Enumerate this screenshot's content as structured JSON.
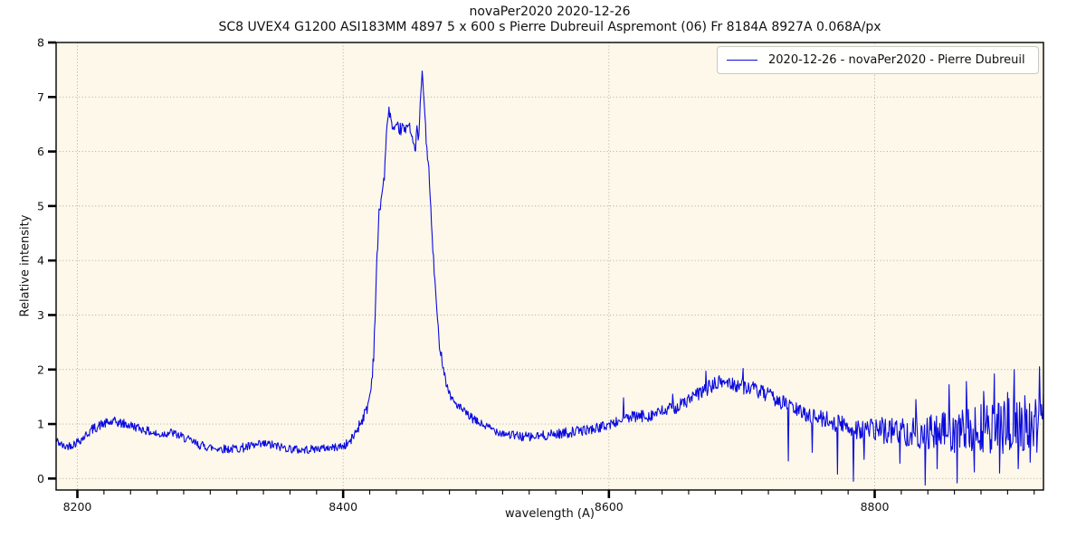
{
  "colors": {
    "figure_bg": "#ffffff",
    "axes_bg": "#fdf8e9",
    "grid": "#a8a496",
    "line": "#0a0ae0",
    "spine": "#000000",
    "text": "#111111",
    "legend_bg": "rgba(255,255,255,0.9)",
    "legend_border": "#c8c8c8"
  },
  "chart_data": {
    "type": "line",
    "title": "novaPer2020 2020-12-26",
    "subtitle": "SC8 UVEX4 G1200 ASI183MM 4897 5 x 600 s Pierre Dubreuil Aspremont (06) Fr 8184A 8927A 0.068A/px",
    "xlabel": "wavelength (A)",
    "ylabel": "Relative intensity",
    "xlim": [
      8184,
      8927
    ],
    "ylim": [
      -0.21,
      8.0
    ],
    "x_major_ticks": [
      8200,
      8400,
      8600,
      8800
    ],
    "x_minor_tick_step": 20,
    "y_major_ticks": [
      0,
      1,
      2,
      3,
      4,
      5,
      6,
      7,
      8
    ],
    "grid": "dotted, horizontal at each y major, vertical at each x major",
    "legend": {
      "position": "upper right",
      "entries": [
        {
          "label": "2020-12-26 - novaPer2020 - Pierre Dubreuil",
          "color": "#0a0ae0"
        }
      ]
    },
    "series": [
      {
        "name": "2020-12-26 - novaPer2020 - Pierre Dubreuil",
        "color": "#0a0ae0",
        "envelope_format": [
          "wavelength_A",
          "mean_intensity",
          "noise_half_amplitude"
        ],
        "envelope_points": [
          [
            8184,
            0.7,
            0.08
          ],
          [
            8190,
            0.58,
            0.07
          ],
          [
            8197,
            0.63,
            0.08
          ],
          [
            8204,
            0.74,
            0.08
          ],
          [
            8211,
            0.9,
            0.09
          ],
          [
            8219,
            1.0,
            0.09
          ],
          [
            8228,
            1.04,
            0.09
          ],
          [
            8237,
            0.99,
            0.09
          ],
          [
            8245,
            0.94,
            0.08
          ],
          [
            8253,
            0.87,
            0.08
          ],
          [
            8261,
            0.8,
            0.08
          ],
          [
            8270,
            0.85,
            0.08
          ],
          [
            8281,
            0.74,
            0.08
          ],
          [
            8291,
            0.62,
            0.08
          ],
          [
            8302,
            0.56,
            0.08
          ],
          [
            8315,
            0.54,
            0.08
          ],
          [
            8329,
            0.58,
            0.09
          ],
          [
            8342,
            0.63,
            0.09
          ],
          [
            8355,
            0.57,
            0.08
          ],
          [
            8368,
            0.52,
            0.08
          ],
          [
            8381,
            0.55,
            0.07
          ],
          [
            8393,
            0.57,
            0.07
          ],
          [
            8401,
            0.6,
            0.08
          ],
          [
            8406,
            0.7,
            0.09
          ],
          [
            8410,
            0.88,
            0.1
          ],
          [
            8414,
            1.08,
            0.12
          ],
          [
            8418,
            1.28,
            0.1
          ],
          [
            8421,
            1.65,
            0.1
          ],
          [
            8423,
            2.3,
            0.15
          ],
          [
            8425,
            3.7,
            0.18
          ],
          [
            8427,
            4.85,
            0.12
          ],
          [
            8429,
            5.2,
            0.08
          ],
          [
            8431,
            5.55,
            0.1
          ],
          [
            8432.5,
            6.25,
            0.08
          ],
          [
            8434,
            6.75,
            0.1
          ],
          [
            8435.5,
            6.7,
            0.1
          ],
          [
            8437,
            6.4,
            0.1
          ],
          [
            8439,
            6.35,
            0.12
          ],
          [
            8441,
            6.45,
            0.1
          ],
          [
            8443,
            6.4,
            0.12
          ],
          [
            8445,
            6.45,
            0.1
          ],
          [
            8447,
            6.35,
            0.1
          ],
          [
            8449,
            6.55,
            0.1
          ],
          [
            8451,
            6.4,
            0.1
          ],
          [
            8453,
            6.12,
            0.08
          ],
          [
            8454.5,
            5.98,
            0.05
          ],
          [
            8455.5,
            6.55,
            0.08
          ],
          [
            8456.5,
            6.15,
            0.08
          ],
          [
            8457.5,
            6.55,
            0.08
          ],
          [
            8458.5,
            7.1,
            0.08
          ],
          [
            8459.5,
            7.45,
            0.04
          ],
          [
            8461,
            6.9,
            0.08
          ],
          [
            8462.5,
            6.2,
            0.08
          ],
          [
            8464.5,
            5.65,
            0.1
          ],
          [
            8466,
            4.9,
            0.1
          ],
          [
            8468,
            4.0,
            0.1
          ],
          [
            8470,
            3.25,
            0.12
          ],
          [
            8472,
            2.55,
            0.1
          ],
          [
            8475,
            2.1,
            0.08
          ],
          [
            8478,
            1.7,
            0.08
          ],
          [
            8482,
            1.45,
            0.08
          ],
          [
            8487,
            1.32,
            0.08
          ],
          [
            8493,
            1.18,
            0.08
          ],
          [
            8500,
            1.05,
            0.08
          ],
          [
            8508,
            0.95,
            0.08
          ],
          [
            8518,
            0.85,
            0.08
          ],
          [
            8530,
            0.78,
            0.09
          ],
          [
            8542,
            0.76,
            0.09
          ],
          [
            8555,
            0.8,
            0.09
          ],
          [
            8568,
            0.84,
            0.1
          ],
          [
            8580,
            0.88,
            0.09
          ],
          [
            8592,
            0.93,
            0.09
          ],
          [
            8604,
            1.02,
            0.1
          ],
          [
            8616,
            1.12,
            0.11
          ],
          [
            8628,
            1.15,
            0.12
          ],
          [
            8640,
            1.22,
            0.12
          ],
          [
            8652,
            1.32,
            0.12
          ],
          [
            8664,
            1.5,
            0.13
          ],
          [
            8676,
            1.68,
            0.14
          ],
          [
            8686,
            1.78,
            0.14
          ],
          [
            8696,
            1.72,
            0.14
          ],
          [
            8708,
            1.65,
            0.14
          ],
          [
            8720,
            1.52,
            0.14
          ],
          [
            8732,
            1.38,
            0.14
          ],
          [
            8744,
            1.22,
            0.14
          ],
          [
            8756,
            1.12,
            0.15
          ],
          [
            8768,
            1.05,
            0.17
          ],
          [
            8780,
            0.95,
            0.2
          ],
          [
            8792,
            0.9,
            0.22
          ],
          [
            8804,
            0.88,
            0.24
          ],
          [
            8816,
            0.88,
            0.26
          ],
          [
            8828,
            0.85,
            0.28
          ],
          [
            8840,
            0.82,
            0.32
          ],
          [
            8852,
            0.88,
            0.38
          ],
          [
            8864,
            0.85,
            0.42
          ],
          [
            8876,
            0.88,
            0.46
          ],
          [
            8888,
            0.92,
            0.5
          ],
          [
            8900,
            0.95,
            0.52
          ],
          [
            8912,
            0.98,
            0.55
          ],
          [
            8927,
            1.05,
            0.58
          ]
        ],
        "spike_format": [
          "wavelength_A",
          "intensity"
        ],
        "spikes": [
          [
            8611,
            1.48
          ],
          [
            8648,
            1.55
          ],
          [
            8673,
            1.97
          ],
          [
            8701,
            2.02
          ],
          [
            8735,
            0.32
          ],
          [
            8753,
            0.48
          ],
          [
            8772,
            0.08
          ],
          [
            8784,
            -0.05
          ],
          [
            8792,
            0.35
          ],
          [
            8819,
            0.28
          ],
          [
            8831,
            1.45
          ],
          [
            8838,
            -0.12
          ],
          [
            8847,
            0.18
          ],
          [
            8856,
            1.72
          ],
          [
            8862,
            -0.08
          ],
          [
            8869,
            1.78
          ],
          [
            8875,
            0.12
          ],
          [
            8882,
            1.6
          ],
          [
            8890,
            1.92
          ],
          [
            8894,
            0.1
          ],
          [
            8900,
            1.58
          ],
          [
            8905,
            2.0
          ],
          [
            8908,
            0.18
          ],
          [
            8913,
            1.52
          ],
          [
            8917,
            0.3
          ],
          [
            8921,
            1.45
          ],
          [
            8924,
            2.05
          ],
          [
            8926,
            1.1
          ]
        ],
        "noise_seed": 42,
        "sample_step_A": 0.5
      }
    ]
  }
}
